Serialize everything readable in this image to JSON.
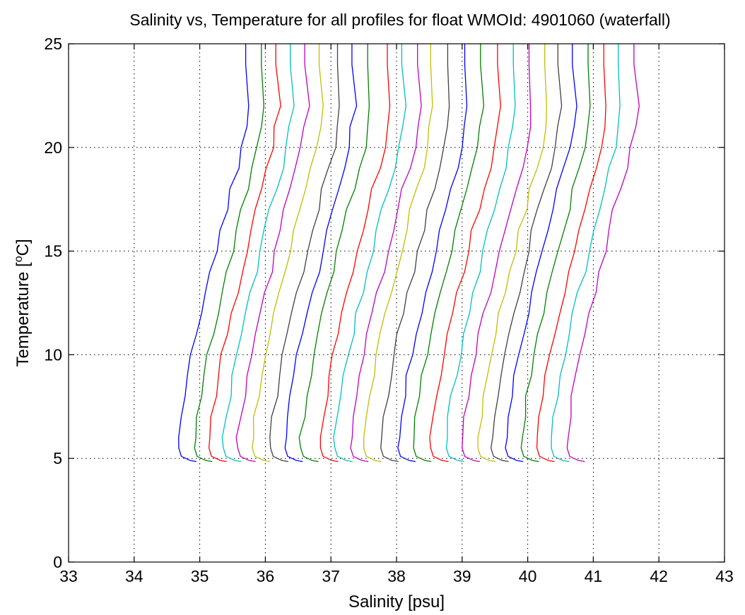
{
  "chart_data": {
    "type": "line",
    "title": "Salinity vs, Temperature for all profiles for float WMOId: 4901060 (waterfall)",
    "xlabel": "Salinity [psu]",
    "ylabel_main": "Temperature [",
    "ylabel_super": "o",
    "ylabel_end": "C]",
    "xlim": [
      33,
      43
    ],
    "ylim": [
      0,
      25
    ],
    "xticks": [
      33,
      34,
      35,
      36,
      37,
      38,
      39,
      40,
      41,
      42,
      43
    ],
    "yticks": [
      0,
      5,
      10,
      15,
      20,
      25
    ],
    "grid": true,
    "legend": "none",
    "color_cycle": [
      "#0000ff",
      "#008000",
      "#ff0000",
      "#00bfbf",
      "#bf00bf",
      "#bfbf00",
      "#404040"
    ],
    "base_profile": {
      "description_temperature": [
        25,
        24,
        22,
        21,
        20,
        19,
        18,
        17,
        16,
        15,
        14,
        13,
        12,
        11,
        10,
        9,
        8,
        7,
        6,
        5.5,
        5.1,
        4.9,
        4.85
      ],
      "salinity_offset": [
        0.8,
        0.8,
        0.85,
        0.8,
        0.75,
        0.68,
        0.58,
        0.5,
        0.42,
        0.35,
        0.28,
        0.2,
        0.12,
        0.05,
        -0.02,
        -0.08,
        -0.13,
        -0.18,
        -0.22,
        -0.22,
        -0.18,
        -0.05,
        0.05
      ]
    },
    "series_offsets": [
      34.9,
      35.14,
      35.36,
      35.58,
      35.8,
      36.02,
      36.3,
      36.52,
      36.76,
      37.06,
      37.28,
      37.52,
      37.72,
      37.98,
      38.24,
      38.48,
      38.74,
      38.98,
      39.22,
      39.46,
      39.66,
      39.88,
      40.12,
      40.36,
      40.58,
      40.82
    ],
    "series": [
      {
        "values_s": [
          35.7,
          35.7,
          35.75,
          35.7,
          35.65,
          35.58,
          35.48,
          35.4,
          35.32,
          35.25,
          35.18,
          35.1,
          35.02,
          34.95,
          34.88,
          34.82,
          34.77,
          34.72,
          34.68,
          34.68,
          34.72,
          34.85,
          34.95
        ]
      },
      {
        "values_s": [
          35.94,
          35.94,
          35.99,
          35.94,
          35.89,
          35.82,
          35.72,
          35.64,
          35.56,
          35.49,
          35.42,
          35.34,
          35.26,
          35.19,
          35.12,
          35.06,
          35.01,
          34.96,
          34.92,
          34.92,
          34.96,
          35.09,
          35.19
        ]
      }
    ],
    "temperature_levels": [
      25,
      24,
      22,
      21,
      20,
      19,
      18,
      17,
      16,
      15,
      14,
      13,
      12,
      11,
      10,
      9,
      8,
      7,
      6,
      5.5,
      5.1,
      4.9,
      4.85
    ]
  }
}
